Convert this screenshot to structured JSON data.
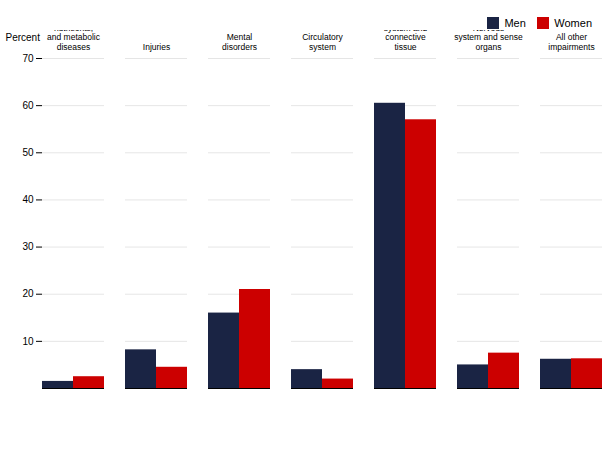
{
  "chart_data": {
    "type": "bar",
    "categories": [
      "Endocrine,\nnutritional,\nand metabolic\ndiseases",
      "Injuries",
      "Mental\ndisorders",
      "Circulatory\nsystem",
      "Musculo-\nskeletal\nsystem and\nconnective\ntissue",
      "Nervous\nsystem and sense\norgans",
      "All other\nimpairments"
    ],
    "series": [
      {
        "name": "Men",
        "color": "#1a2444",
        "values": [
          1.5,
          8.2,
          16.0,
          4.0,
          60.5,
          5.0,
          6.2
        ]
      },
      {
        "name": "Women",
        "color": "#cc0000",
        "values": [
          2.5,
          4.5,
          21.0,
          2.0,
          57.0,
          7.5,
          6.3
        ]
      }
    ],
    "ylabel": "Percent",
    "ylim": [
      0,
      70
    ],
    "yticks": [
      10,
      20,
      30,
      40,
      50,
      60,
      70
    ],
    "grid": true,
    "legend": "upper right"
  }
}
